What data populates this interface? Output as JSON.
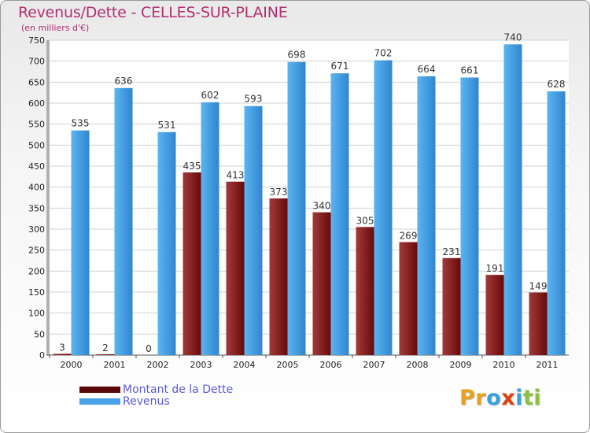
{
  "header": {
    "title": "Revenus/Dette - CELLES-SUR-PLAINE",
    "subtitle": "(en milliers d'€)"
  },
  "logo": {
    "letters": [
      "P",
      "r",
      "o",
      "x",
      "i",
      "t",
      "i"
    ],
    "colors": [
      "#e8a020",
      "#e8a020",
      "#3aa0d8",
      "#e04010",
      "#3aa0d8",
      "#8cc040",
      "#8cc040"
    ]
  },
  "legend": {
    "items": [
      {
        "label": "Montant de la Dette",
        "color": "#7a0f0f"
      },
      {
        "label": "Revenus",
        "color": "#4aa3e8"
      }
    ]
  },
  "chart_data": {
    "type": "bar",
    "title": "Revenus/Dette - CELLES-SUR-PLAINE",
    "ylabel": "(en milliers d'€)",
    "xlabel": "",
    "categories": [
      "2000",
      "2001",
      "2002",
      "2003",
      "2004",
      "2005",
      "2006",
      "2007",
      "2008",
      "2009",
      "2010",
      "2011"
    ],
    "series": [
      {
        "name": "Montant de la Dette",
        "color": "#7a0f0f",
        "values": [
          3,
          2,
          0,
          435,
          413,
          373,
          340,
          305,
          269,
          231,
          191,
          149
        ]
      },
      {
        "name": "Revenus",
        "color": "#4aa3e8",
        "values": [
          535,
          636,
          531,
          602,
          593,
          698,
          671,
          702,
          664,
          661,
          740,
          628
        ]
      }
    ],
    "ylim": [
      0,
      750
    ],
    "yticks": [
      0,
      50,
      100,
      150,
      200,
      250,
      300,
      350,
      400,
      450,
      500,
      550,
      600,
      650,
      700,
      750
    ],
    "grid": true,
    "legend": "bottom-left"
  }
}
